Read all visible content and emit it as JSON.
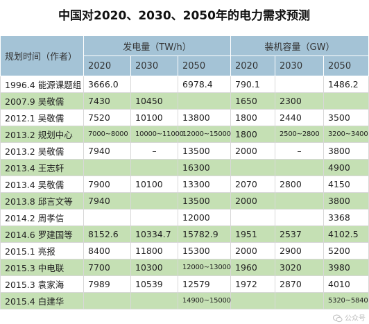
{
  "title": "中国对2020、2030、2050年的电力需求预测",
  "header": {
    "row_label": "规划时间（作者）",
    "group_generation": "发电量（TW/h）",
    "group_capacity": "装机容量（GW）",
    "years": [
      "2020",
      "2030",
      "2050",
      "2020",
      "2030",
      "2050"
    ]
  },
  "rows": [
    {
      "time_author": "1996.4  能源课题组",
      "cells": [
        "3666.0",
        "",
        "6978.4",
        "790.1",
        "",
        "1486.2"
      ]
    },
    {
      "time_author": "2007.9  吴敬儒",
      "cells": [
        "7430",
        "10450",
        "",
        "1650",
        "2300",
        ""
      ]
    },
    {
      "time_author": "2012.1  吴敬儒",
      "cells": [
        "7520",
        "10100",
        "13800",
        "1800",
        "2440",
        "3500"
      ]
    },
    {
      "time_author": "2013.2  规划中心",
      "cells": [
        "7000~8000",
        "10000~11000",
        "12000~15000",
        "1800",
        "2500~2800",
        "3200~3400"
      ]
    },
    {
      "time_author": "2013.2  吴敬儒",
      "cells": [
        "7940",
        "–",
        "13500",
        "2000",
        "–",
        "3800"
      ]
    },
    {
      "time_author": "2013.4  王志轩",
      "cells": [
        "",
        "",
        "16300",
        "",
        "",
        "4900"
      ]
    },
    {
      "time_author": "2013.4  吴敬儒",
      "cells": [
        "7900",
        "10100",
        "13300",
        "2070",
        "2800",
        "4150"
      ]
    },
    {
      "time_author": "2013.8  邱言文等",
      "cells": [
        "7940",
        "",
        "13500",
        "2000",
        "",
        "3800"
      ]
    },
    {
      "time_author": "2014.2  周孝信",
      "cells": [
        "",
        "",
        "12000",
        "",
        "",
        "3368"
      ]
    },
    {
      "time_author": "2014.6  罗建国等",
      "cells": [
        "8152.6",
        "10334.7",
        "15782.9",
        "1951",
        "2537",
        "4102.5"
      ]
    },
    {
      "time_author": "2015.1  亮报",
      "cells": [
        "8400",
        "11800",
        "15300",
        "2000",
        "2900",
        "5200"
      ]
    },
    {
      "time_author": "2015.3  中电联",
      "cells": [
        "7700",
        "10300",
        "12000~13000",
        "1960",
        "3020",
        "3980"
      ]
    },
    {
      "time_author": "2015.3  袁家海",
      "cells": [
        "7989",
        "10539",
        "12579",
        "1972",
        "2870",
        "4010"
      ]
    },
    {
      "time_author": "2015.4  白建华",
      "cells": [
        "",
        "",
        "14900~15000",
        "",
        "",
        "5320~5840"
      ]
    }
  ],
  "watermark": "公众号"
}
